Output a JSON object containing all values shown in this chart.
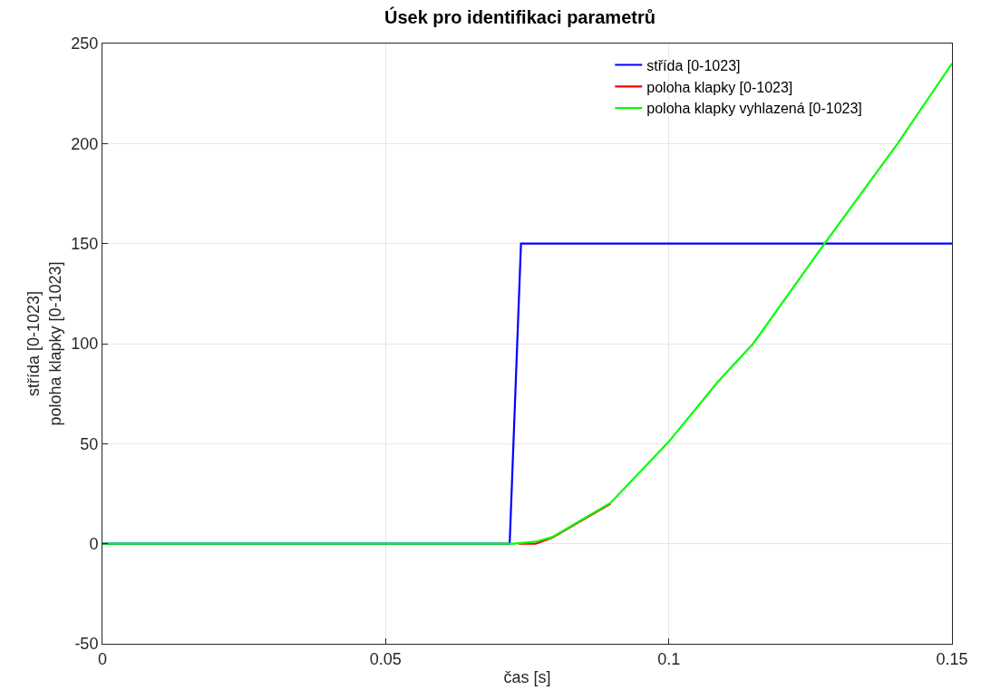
{
  "chart_data": {
    "type": "line",
    "title": "Úsek pro identifikaci parametrů",
    "xlabel": "čas [s]",
    "ylabel": "střída [0-1023]\npoloha klapky [0-1023]",
    "xlim": [
      0,
      0.15
    ],
    "ylim": [
      -50,
      250
    ],
    "xticks": [
      0,
      0.05,
      0.1,
      0.15
    ],
    "yticks": [
      -50,
      0,
      50,
      100,
      150,
      200,
      250
    ],
    "grid": true,
    "legend": "top right",
    "line_style": "solid",
    "marker": "none",
    "series": [
      {
        "name": "střída [0-1023]",
        "color": "#0000ff",
        "x": [
          0,
          0.0719,
          0.0739,
          0.15
        ],
        "values": [
          0,
          0,
          150,
          150
        ]
      },
      {
        "name": "poloha klapky [0-1023]",
        "color": "#ff0000",
        "x": [
          0.0735,
          0.0765,
          0.0794,
          0.0897
        ],
        "values": [
          0,
          0,
          3,
          20
        ]
      },
      {
        "name": "poloha klapky vyhlazená [0-1023]",
        "color": "#00ff00",
        "x": [
          0,
          0.0725,
          0.0765,
          0.0794,
          0.0897,
          0.1,
          0.1086,
          0.1149,
          0.1275,
          0.1404,
          0.15
        ],
        "values": [
          0,
          0,
          1,
          3.3,
          20.4,
          51,
          80.7,
          100,
          150,
          200,
          240
        ]
      }
    ]
  }
}
